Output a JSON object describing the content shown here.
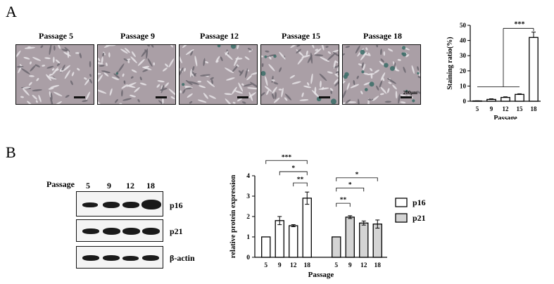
{
  "panel_a": {
    "letter": "A",
    "images": [
      {
        "label": "Passage 5",
        "scale_label": ""
      },
      {
        "label": "Passage 9",
        "scale_label": ""
      },
      {
        "label": "Passage 12",
        "scale_label": ""
      },
      {
        "label": "Passage 15",
        "scale_label": ""
      },
      {
        "label": "Passage 18",
        "scale_label": "200μm"
      }
    ]
  },
  "panel_b": {
    "letter": "B",
    "passage_header": "Passage",
    "lanes": [
      "5",
      "9",
      "12",
      "18"
    ],
    "blots": [
      "p16",
      "p21",
      "β-actin"
    ]
  },
  "chart_data": [
    {
      "type": "bar",
      "categories": [
        "5",
        "9",
        "12",
        "15",
        "18"
      ],
      "values": [
        0.2,
        1.2,
        2.5,
        4.5,
        42
      ],
      "errors": [
        0.1,
        0.4,
        0.4,
        0.4,
        3.5
      ],
      "xlabel": "Passage",
      "ylabel": "Staining ratio(%)",
      "ylim": [
        0,
        50
      ],
      "yticks": [
        0,
        10,
        20,
        30,
        40,
        50
      ],
      "significance": [
        {
          "label": "***"
        }
      ],
      "bar_color": "#ffffff",
      "grid": false
    },
    {
      "type": "bar",
      "categories": [
        "5",
        "9",
        "12",
        "18"
      ],
      "series": [
        {
          "name": "p16",
          "values": [
            1.0,
            1.8,
            1.55,
            2.9
          ],
          "errors": [
            0.0,
            0.2,
            0.05,
            0.3
          ],
          "color": "#ffffff"
        },
        {
          "name": "p21",
          "values": [
            1.0,
            1.97,
            1.68,
            1.63
          ],
          "errors": [
            0.0,
            0.07,
            0.1,
            0.2
          ],
          "color": "#d4d4d4"
        }
      ],
      "xlabel": "Passage",
      "ylabel": "relative protein expression",
      "ylim": [
        0,
        4
      ],
      "yticks": [
        0,
        1,
        2,
        3,
        4
      ],
      "significance": [
        {
          "series": "p16",
          "label": "***"
        },
        {
          "series": "p16",
          "label": "*"
        },
        {
          "series": "p16",
          "label": "**"
        },
        {
          "series": "p21",
          "label": "*"
        },
        {
          "series": "p21",
          "label": "*"
        },
        {
          "series": "p21",
          "label": "**"
        }
      ],
      "legend": "right",
      "grid": false
    }
  ]
}
